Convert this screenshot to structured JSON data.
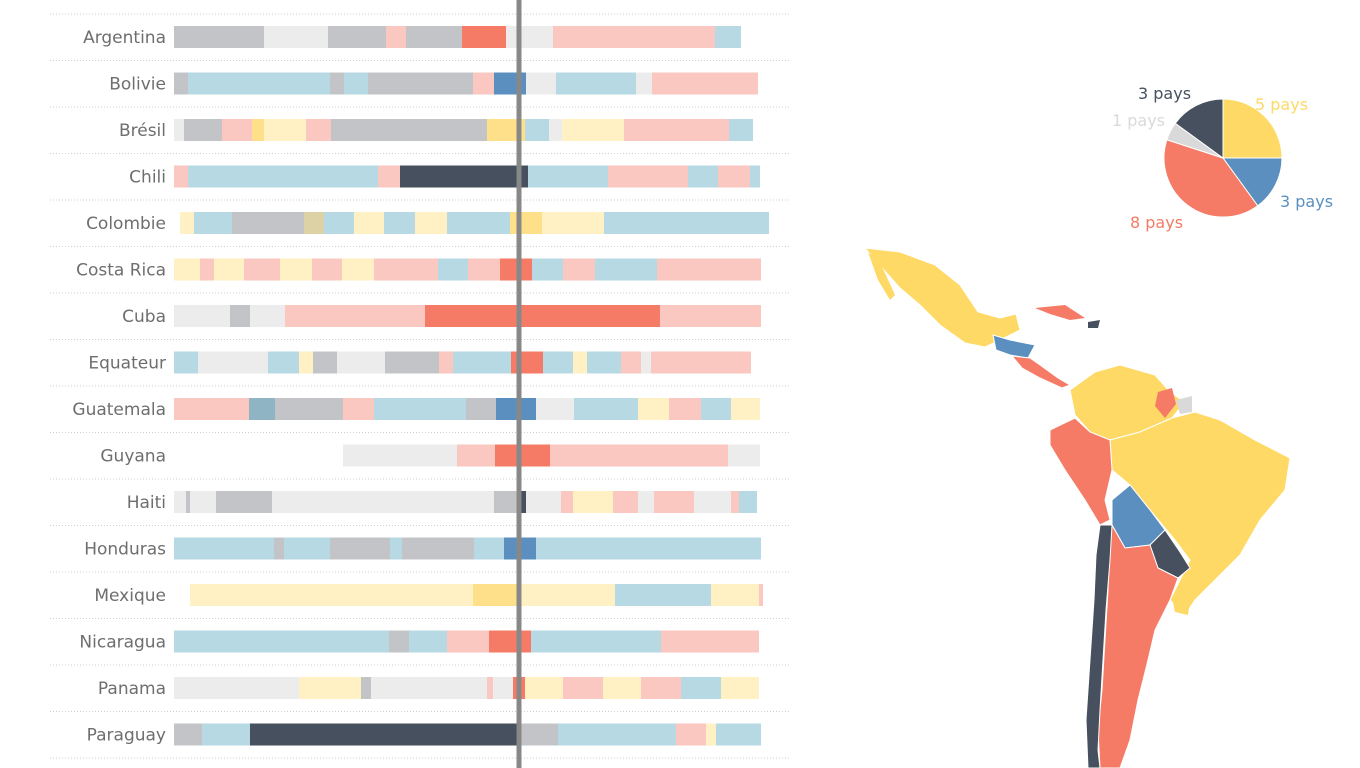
{
  "palette": {
    "gray": "#c3c4c8",
    "lightgray": "#ececec",
    "blue": "#b6d9e3",
    "blue_dark": "#5b8fbf",
    "red": "#f57b66",
    "red_light": "#fac7c1",
    "yellow": "#ffe08a",
    "yellow_light": "#fff1c3",
    "navy": "#46505e",
    "olive": "#dcd2a6",
    "teal": "#8fb5c4"
  },
  "chart_data": [
    {
      "type": "bar",
      "categories": [
        "Argentina",
        "Bolivie",
        "Brésil",
        "Chili",
        "Colombie",
        "Costa Rica",
        "Cuba",
        "Equateur",
        "Guatemala",
        "Guyana",
        "Haiti",
        "Honduras",
        "Mexique",
        "Nicaragua",
        "Panama",
        "Paraguay"
      ],
      "rows": [
        {
          "name": "Argentina",
          "segments": [
            [
              "gray",
              90
            ],
            [
              "lightgray",
              64
            ],
            [
              "gray",
              58
            ],
            [
              "red_light",
              20
            ],
            [
              "gray",
              56
            ],
            [
              "red",
              44
            ],
            [
              "lightgray",
              47
            ],
            [
              "red_light",
              162
            ],
            [
              "blue",
              26
            ]
          ]
        },
        {
          "name": "Bolivie",
          "segments": [
            [
              "gray",
              14
            ],
            [
              "blue",
              40
            ],
            [
              "blue",
              102
            ],
            [
              "gray",
              14
            ],
            [
              "blue",
              24
            ],
            [
              "gray",
              83
            ],
            [
              "gray",
              22
            ],
            [
              "red_light",
              21
            ],
            [
              "blue_dark",
              32
            ],
            [
              "lightgray",
              30
            ],
            [
              "blue",
              80
            ],
            [
              "lightgray",
              16
            ],
            [
              "red_light",
              106
            ]
          ]
        },
        {
          "name": "Brésil",
          "segments": [
            [
              "lightgray",
              10
            ],
            [
              "gray",
              38
            ],
            [
              "red_light",
              30
            ],
            [
              "yellow",
              12
            ],
            [
              "yellow_light",
              42
            ],
            [
              "red_light",
              25
            ],
            [
              "gray",
              35
            ],
            [
              "gray",
              121
            ],
            [
              "yellow",
              38
            ],
            [
              "blue",
              24
            ],
            [
              "lightgray",
              13
            ],
            [
              "yellow_light",
              62
            ],
            [
              "red_light",
              105
            ],
            [
              "blue",
              24
            ]
          ]
        },
        {
          "name": "Chili",
          "segments": [
            [
              "red_light",
              14
            ],
            [
              "blue",
              190
            ],
            [
              "red_light",
              22
            ],
            [
              "navy",
              128
            ],
            [
              "blue",
              80
            ],
            [
              "red_light",
              80
            ],
            [
              "blue",
              30
            ],
            [
              "red_light",
              32
            ],
            [
              "blue",
              10
            ]
          ]
        },
        {
          "name": "Colombie",
          "segments": [
            [
              "yellow_light",
              14
            ],
            [
              "blue",
              38
            ],
            [
              "gray",
              72
            ],
            [
              "olive",
              20
            ],
            [
              "blue",
              30
            ],
            [
              "yellow_light",
              30
            ],
            [
              "blue",
              31
            ],
            [
              "yellow_light",
              32
            ],
            [
              "blue",
              63
            ],
            [
              "yellow",
              32
            ],
            [
              "yellow_light",
              62
            ],
            [
              "blue",
              165
            ]
          ]
        },
        {
          "name": "Costa Rica",
          "segments": [
            [
              "yellow_light",
              26
            ],
            [
              "red_light",
              14
            ],
            [
              "yellow_light",
              30
            ],
            [
              "red_light",
              36
            ],
            [
              "yellow_light",
              32
            ],
            [
              "red_light",
              30
            ],
            [
              "yellow_light",
              32
            ],
            [
              "red_light",
              64
            ],
            [
              "blue",
              30
            ],
            [
              "red_light",
              32
            ],
            [
              "red",
              32
            ],
            [
              "blue",
              31
            ],
            [
              "red_light",
              32
            ],
            [
              "blue",
              62
            ],
            [
              "red_light",
              104
            ]
          ]
        },
        {
          "name": "Cuba",
          "segments": [
            [
              "lightgray",
              56
            ],
            [
              "gray",
              20
            ],
            [
              "lightgray",
              35
            ],
            [
              "red_light",
              140
            ],
            [
              "red",
              235
            ],
            [
              "red_light",
              101
            ]
          ]
        },
        {
          "name": "Equateur",
          "segments": [
            [
              "blue",
              24
            ],
            [
              "lightgray",
              70
            ],
            [
              "blue",
              31
            ],
            [
              "yellow_light",
              14
            ],
            [
              "gray",
              24
            ],
            [
              "lightgray",
              48
            ],
            [
              "gray",
              54
            ],
            [
              "red_light",
              14
            ],
            [
              "blue",
              58
            ],
            [
              "red",
              32
            ],
            [
              "blue",
              30
            ],
            [
              "yellow_light",
              14
            ],
            [
              "blue",
              34
            ],
            [
              "red_light",
              20
            ],
            [
              "lightgray",
              10
            ],
            [
              "red_light",
              100
            ]
          ]
        },
        {
          "name": "Guatemala",
          "segments": [
            [
              "red_light",
              75
            ],
            [
              "teal",
              26
            ],
            [
              "gray",
              68
            ],
            [
              "red_light",
              31
            ],
            [
              "blue",
              92
            ],
            [
              "gray",
              30
            ],
            [
              "blue_dark",
              40
            ],
            [
              "lightgray",
              38
            ],
            [
              "blue",
              64
            ],
            [
              "yellow_light",
              31
            ],
            [
              "red_light",
              32
            ],
            [
              "blue",
              30
            ],
            [
              "yellow_light",
              29
            ]
          ]
        },
        {
          "name": "Guyana",
          "segments": [
            [
              "lightgray",
              114
            ],
            [
              "red_light",
              38
            ],
            [
              "red",
              55
            ],
            [
              "red_light",
              178
            ],
            [
              "lightgray",
              32
            ]
          ]
        },
        {
          "name": "Haiti",
          "segments": [
            [
              "lightgray",
              12
            ],
            [
              "gray",
              4
            ],
            [
              "lightgray",
              26
            ],
            [
              "gray",
              56
            ],
            [
              "lightgray",
              222
            ],
            [
              "gray",
              24
            ],
            [
              "navy",
              8
            ],
            [
              "lightgray",
              35
            ],
            [
              "red_light",
              12
            ],
            [
              "yellow_light",
              40
            ],
            [
              "red_light",
              25
            ],
            [
              "lightgray",
              16
            ],
            [
              "red_light",
              40
            ],
            [
              "lightgray",
              37
            ],
            [
              "red_light",
              8
            ],
            [
              "blue",
              18
            ]
          ]
        },
        {
          "name": "Honduras",
          "segments": [
            [
              "blue",
              100
            ],
            [
              "gray",
              10
            ],
            [
              "blue",
              46
            ],
            [
              "gray",
              60
            ],
            [
              "blue",
              12
            ],
            [
              "gray",
              72
            ],
            [
              "blue",
              30
            ],
            [
              "blue_dark",
              32
            ],
            [
              "blue",
              225
            ]
          ]
        },
        {
          "name": "Mexique",
          "segments": [
            [
              "yellow_light",
              283
            ],
            [
              "yellow",
              44
            ],
            [
              "yellow_light",
              98
            ],
            [
              "blue",
              96
            ],
            [
              "yellow_light",
              48
            ],
            [
              "red_light",
              4
            ]
          ]
        },
        {
          "name": "Nicaragua",
          "segments": [
            [
              "blue",
              215
            ],
            [
              "gray",
              20
            ],
            [
              "blue",
              38
            ],
            [
              "red_light",
              42
            ],
            [
              "red",
              42
            ],
            [
              "blue",
              130
            ],
            [
              "red_light",
              98
            ]
          ]
        },
        {
          "name": "Panama",
          "segments": [
            [
              "lightgray",
              125
            ],
            [
              "yellow_light",
              62
            ],
            [
              "gray",
              10
            ],
            [
              "lightgray",
              116
            ],
            [
              "red_light",
              6
            ],
            [
              "lightgray",
              20
            ],
            [
              "red",
              12
            ],
            [
              "yellow_light",
              38
            ],
            [
              "red_light",
              40
            ],
            [
              "yellow_light",
              38
            ],
            [
              "red_light",
              40
            ],
            [
              "blue",
              40
            ],
            [
              "yellow_light",
              38
            ]
          ]
        },
        {
          "name": "Paraguay",
          "segments": [
            [
              "gray",
              28
            ],
            [
              "blue",
              48
            ],
            [
              "navy",
              268
            ],
            [
              "gray",
              40
            ],
            [
              "blue",
              118
            ],
            [
              "red_light",
              30
            ],
            [
              "yellow_light",
              10
            ],
            [
              "blue",
              45
            ]
          ]
        }
      ]
    },
    {
      "type": "pie",
      "slices": [
        {
          "label": "5 pays",
          "value": 5,
          "color": "#fed966"
        },
        {
          "label": "3 pays",
          "value": 3,
          "color": "#5b8fbf"
        },
        {
          "label": "8 pays",
          "value": 8,
          "color": "#f57b66"
        },
        {
          "label": "1 pays",
          "value": 1,
          "color": "#d9d9d9"
        },
        {
          "label": "3 pays",
          "value": 3,
          "color": "#46505e"
        }
      ]
    }
  ]
}
